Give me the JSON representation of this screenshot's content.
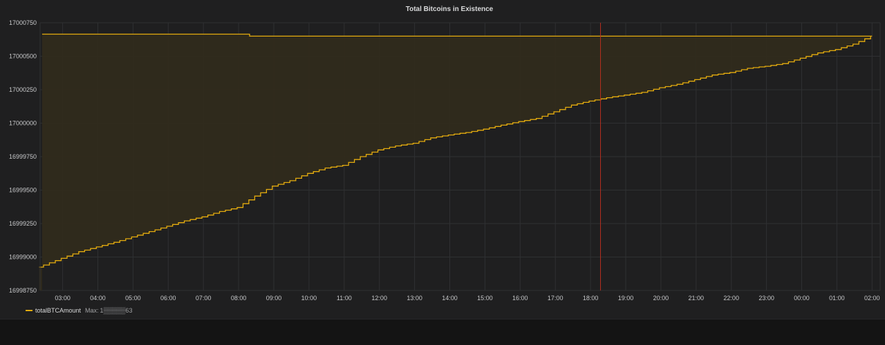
{
  "panel": {
    "title": "Total Bitcoins in Existence"
  },
  "legend": {
    "series_name": "totalBTCAmount",
    "max_label": "Max:",
    "max_value": "1▒▒▒▒▒63"
  },
  "colors": {
    "series": "#e5ac0e",
    "fill": "#302b1c",
    "marker": "#b52e1f",
    "grid": "#2f3032",
    "tick_text": "#c7c8ca"
  },
  "chart_data": {
    "type": "area",
    "title": "Total Bitcoins in Existence",
    "xlabel": "",
    "ylabel": "",
    "x_ticks": [
      "03:00",
      "04:00",
      "05:00",
      "06:00",
      "07:00",
      "08:00",
      "09:00",
      "10:00",
      "11:00",
      "12:00",
      "13:00",
      "14:00",
      "15:00",
      "16:00",
      "17:00",
      "18:00",
      "19:00",
      "20:00",
      "21:00",
      "22:00",
      "23:00",
      "00:00",
      "01:00",
      "02:00"
    ],
    "y_ticks": [
      "16998750",
      "16999000",
      "16999250",
      "16999500",
      "16999750",
      "17000000",
      "17000250",
      "17000500",
      "17000750"
    ],
    "ylim": [
      16998750,
      17000750
    ],
    "grid": true,
    "legend_position": "bottom-left",
    "marker_time": "18:17",
    "series": [
      {
        "name": "totalBTCAmount",
        "x": [
          "02:20",
          "02:30",
          "03:00",
          "03:30",
          "04:00",
          "04:30",
          "05:00",
          "05:30",
          "06:00",
          "06:30",
          "07:00",
          "07:30",
          "08:00",
          "08:30",
          "09:00",
          "09:30",
          "10:00",
          "10:30",
          "11:00",
          "11:30",
          "12:00",
          "12:30",
          "13:00",
          "13:30",
          "14:00",
          "14:30",
          "15:00",
          "15:30",
          "16:00",
          "16:30",
          "17:00",
          "17:30",
          "18:00",
          "18:30",
          "19:00",
          "19:30",
          "20:00",
          "20:30",
          "21:00",
          "21:30",
          "22:00",
          "22:30",
          "23:00",
          "23:30",
          "00:00",
          "00:30",
          "01:00",
          "01:30",
          "02:00",
          "02:25"
        ],
        "values": [
          16998925,
          16998940,
          16998990,
          16999040,
          16999075,
          16999110,
          16999150,
          16999190,
          16999230,
          16999270,
          16999300,
          16999340,
          16999370,
          16999455,
          16999530,
          16999570,
          16999625,
          16999665,
          16999685,
          16999750,
          16999800,
          16999830,
          16999850,
          16999890,
          16999912,
          16999930,
          16999955,
          16999985,
          17000012,
          17000035,
          17000085,
          17000135,
          17000165,
          17000190,
          17000210,
          17000230,
          17000265,
          17000290,
          17000325,
          17000360,
          17000378,
          17000410,
          17000425,
          17000445,
          17000485,
          17000525,
          17000550,
          17000590,
          17000650,
          17000665
        ]
      }
    ]
  }
}
